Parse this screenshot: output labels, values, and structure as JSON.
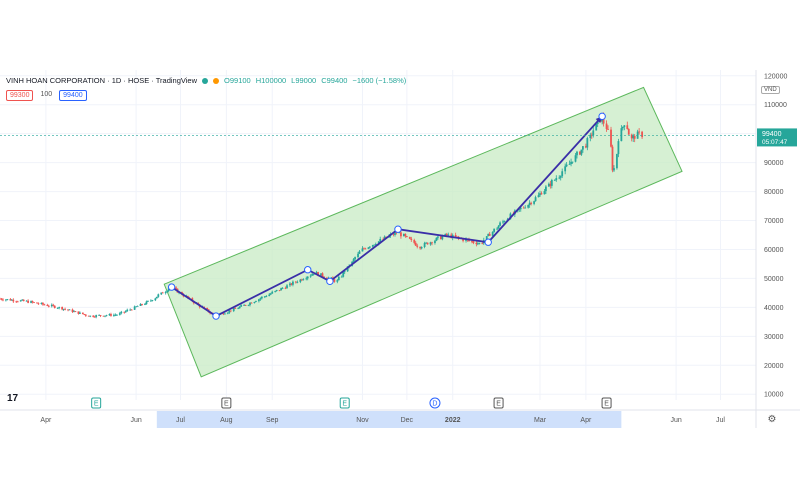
{
  "header": {
    "title": "VINH HOAN CORPORATION · 1D · HOSE · TradingView",
    "ohlc": {
      "open": "O99100",
      "high": "H100000",
      "low": "L99000",
      "close": "C99400",
      "change": "−1600 (−1.58%)"
    },
    "sell_price": "99300",
    "quantity": "100",
    "buy_price": "99400",
    "currency": "VND"
  },
  "price_label": {
    "value": "99400",
    "countdown": "05:07:47"
  },
  "branding": {
    "logo": "17"
  },
  "colors": {
    "up": "#26a69a",
    "down": "#ef5350",
    "channel_fill": "#c8ebc4",
    "channel_stroke": "#5cb85c",
    "path_line": "#3a2ea8",
    "price_tag": "#26a69a"
  },
  "chart_data": {
    "type": "candlestick",
    "title": "VINH HOAN CORPORATION · 1D · HOSE",
    "y_ticks": [
      10000,
      20000,
      30000,
      40000,
      50000,
      60000,
      70000,
      80000,
      90000,
      100000,
      110000,
      120000
    ],
    "ylim": [
      8000,
      122000
    ],
    "x_ticks": [
      {
        "label": "Apr",
        "date": "2021-04-01"
      },
      {
        "label": "Jun",
        "date": "2021-06-01"
      },
      {
        "label": "Jul",
        "date": "2021-07-01"
      },
      {
        "label": "Aug",
        "date": "2021-08-01"
      },
      {
        "label": "Sep",
        "date": "2021-09-01"
      },
      {
        "label": "Nov",
        "date": "2021-11-01"
      },
      {
        "label": "Dec",
        "date": "2021-12-01"
      },
      {
        "label": "2022",
        "date": "2022-01-01"
      },
      {
        "label": "Mar",
        "date": "2022-03-01"
      },
      {
        "label": "Apr",
        "date": "2022-04-01"
      },
      {
        "label": "Jun",
        "date": "2022-06-01"
      },
      {
        "label": "Jul",
        "date": "2022-07-01"
      }
    ],
    "xlim": [
      "2021-03-01",
      "2022-07-25"
    ],
    "highlight_range": [
      "2021-06-15",
      "2022-04-25"
    ],
    "price_path": [
      {
        "date": "2021-03-01",
        "close": 43000
      },
      {
        "date": "2021-03-20",
        "close": 42000
      },
      {
        "date": "2021-04-10",
        "close": 40000
      },
      {
        "date": "2021-05-01",
        "close": 37000
      },
      {
        "date": "2021-05-20",
        "close": 37500
      },
      {
        "date": "2021-06-10",
        "close": 42000
      },
      {
        "date": "2021-06-25",
        "close": 47000
      },
      {
        "date": "2021-07-10",
        "close": 42000
      },
      {
        "date": "2021-07-25",
        "close": 37000
      },
      {
        "date": "2021-08-15",
        "close": 41000
      },
      {
        "date": "2021-09-10",
        "close": 47000
      },
      {
        "date": "2021-09-30",
        "close": 52000
      },
      {
        "date": "2021-10-15",
        "close": 49000
      },
      {
        "date": "2021-11-01",
        "close": 60000
      },
      {
        "date": "2021-11-25",
        "close": 66000
      },
      {
        "date": "2021-12-10",
        "close": 61000
      },
      {
        "date": "2021-12-28",
        "close": 65000
      },
      {
        "date": "2022-01-20",
        "close": 62000
      },
      {
        "date": "2022-02-05",
        "close": 70000
      },
      {
        "date": "2022-02-25",
        "close": 77000
      },
      {
        "date": "2022-03-15",
        "close": 86000
      },
      {
        "date": "2022-04-01",
        "close": 96000
      },
      {
        "date": "2022-04-12",
        "close": 106000
      },
      {
        "date": "2022-04-17",
        "close": 100000
      },
      {
        "date": "2022-04-20",
        "close": 85000
      },
      {
        "date": "2022-04-24",
        "close": 100000
      },
      {
        "date": "2022-04-28",
        "close": 104000
      },
      {
        "date": "2022-05-02",
        "close": 98000
      },
      {
        "date": "2022-05-07",
        "close": 100000
      },
      {
        "date": "2022-05-10",
        "close": 99400
      }
    ],
    "trend_channel": [
      {
        "date": "2021-06-20",
        "price": 48000
      },
      {
        "date": "2022-05-10",
        "price": 116000
      },
      {
        "date": "2022-06-05",
        "price": 87000
      },
      {
        "date": "2021-07-15",
        "price": 16000
      }
    ],
    "zigzag": [
      {
        "date": "2021-06-25",
        "price": 47000
      },
      {
        "date": "2021-07-25",
        "price": 37000
      },
      {
        "date": "2021-09-25",
        "price": 53000
      },
      {
        "date": "2021-10-10",
        "price": 49000
      },
      {
        "date": "2021-11-25",
        "price": 67000
      },
      {
        "date": "2022-01-25",
        "price": 62500
      },
      {
        "date": "2022-04-12",
        "price": 106000
      }
    ],
    "events": [
      {
        "label": "E",
        "date": "2021-05-05",
        "color": "#26a69a"
      },
      {
        "label": "E",
        "date": "2021-08-01",
        "color": "#555555"
      },
      {
        "label": "E",
        "date": "2021-10-20",
        "color": "#26a69a"
      },
      {
        "label": "D",
        "date": "2021-12-20",
        "color": "#2962ff"
      },
      {
        "label": "E",
        "date": "2022-02-01",
        "color": "#555555"
      },
      {
        "label": "E",
        "date": "2022-04-15",
        "color": "#555555"
      }
    ],
    "last_price": 99400
  }
}
